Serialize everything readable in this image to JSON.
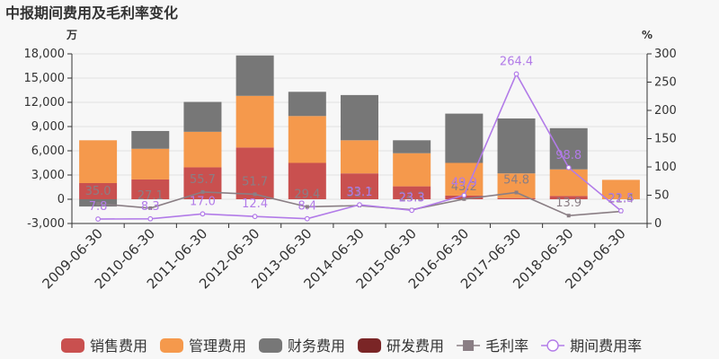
{
  "title": "中报期间费用及毛利率变化",
  "left_unit": "万",
  "right_unit": "%",
  "colors": {
    "sales": "#c9504f",
    "admin": "#f5994c",
    "finance": "#777777",
    "rnd": "#7a2526",
    "gross_margin": "#8a7e84",
    "expense_ratio": "#b27be8"
  },
  "chart_data": {
    "type": "bar",
    "title": "中报期间费用及毛利率变化",
    "categories": [
      "2009-06-30",
      "2010-06-30",
      "2011-06-30",
      "2012-06-30",
      "2013-06-30",
      "2014-06-30",
      "2015-06-30",
      "2016-06-30",
      "2017-06-30",
      "2018-06-30",
      "2019-06-30"
    ],
    "ylim": [
      -3000,
      18000
    ],
    "y_ticks": [
      -3000,
      0,
      3000,
      6000,
      9000,
      12000,
      15000,
      18000
    ],
    "y_ticks_labels": [
      "-3,000",
      "0",
      "3,000",
      "6,000",
      "9,000",
      "12,000",
      "15,000",
      "18,000"
    ],
    "y2lim": [
      0,
      300
    ],
    "y2_ticks": [
      0,
      50,
      100,
      150,
      200,
      250,
      300
    ],
    "legend_position": "bottom",
    "series": [
      {
        "name": "销售费用",
        "key": "sales",
        "kind": "bar",
        "values": [
          2000,
          2450,
          3950,
          6400,
          4500,
          3200,
          1600,
          450,
          150,
          400,
          0
        ]
      },
      {
        "name": "管理费用",
        "key": "admin",
        "kind": "bar",
        "values": [
          5300,
          3800,
          4400,
          6400,
          5800,
          4100,
          4100,
          4050,
          3050,
          3300,
          2400
        ]
      },
      {
        "name": "财务费用",
        "key": "finance",
        "kind": "bar",
        "values": [
          -900,
          2200,
          3700,
          5000,
          3000,
          5600,
          1600,
          6100,
          6800,
          5100,
          0
        ]
      },
      {
        "name": "研发费用",
        "key": "rnd",
        "kind": "bar",
        "values": [
          0,
          0,
          0,
          0,
          0,
          0,
          0,
          0,
          0,
          0,
          0
        ]
      },
      {
        "name": "毛利率",
        "key": "gross_margin",
        "kind": "line",
        "axis": "right",
        "values": [
          35.0,
          27.1,
          55.7,
          51.7,
          29.4,
          31.7,
          24.3,
          43.2,
          54.8,
          13.9,
          21.4
        ]
      },
      {
        "name": "期间费用率",
        "key": "expense_ratio",
        "kind": "line",
        "axis": "right",
        "values": [
          7.8,
          8.3,
          17.0,
          12.4,
          8.4,
          33.1,
          23.3,
          49.9,
          264.4,
          98.8,
          22.5
        ]
      }
    ]
  }
}
